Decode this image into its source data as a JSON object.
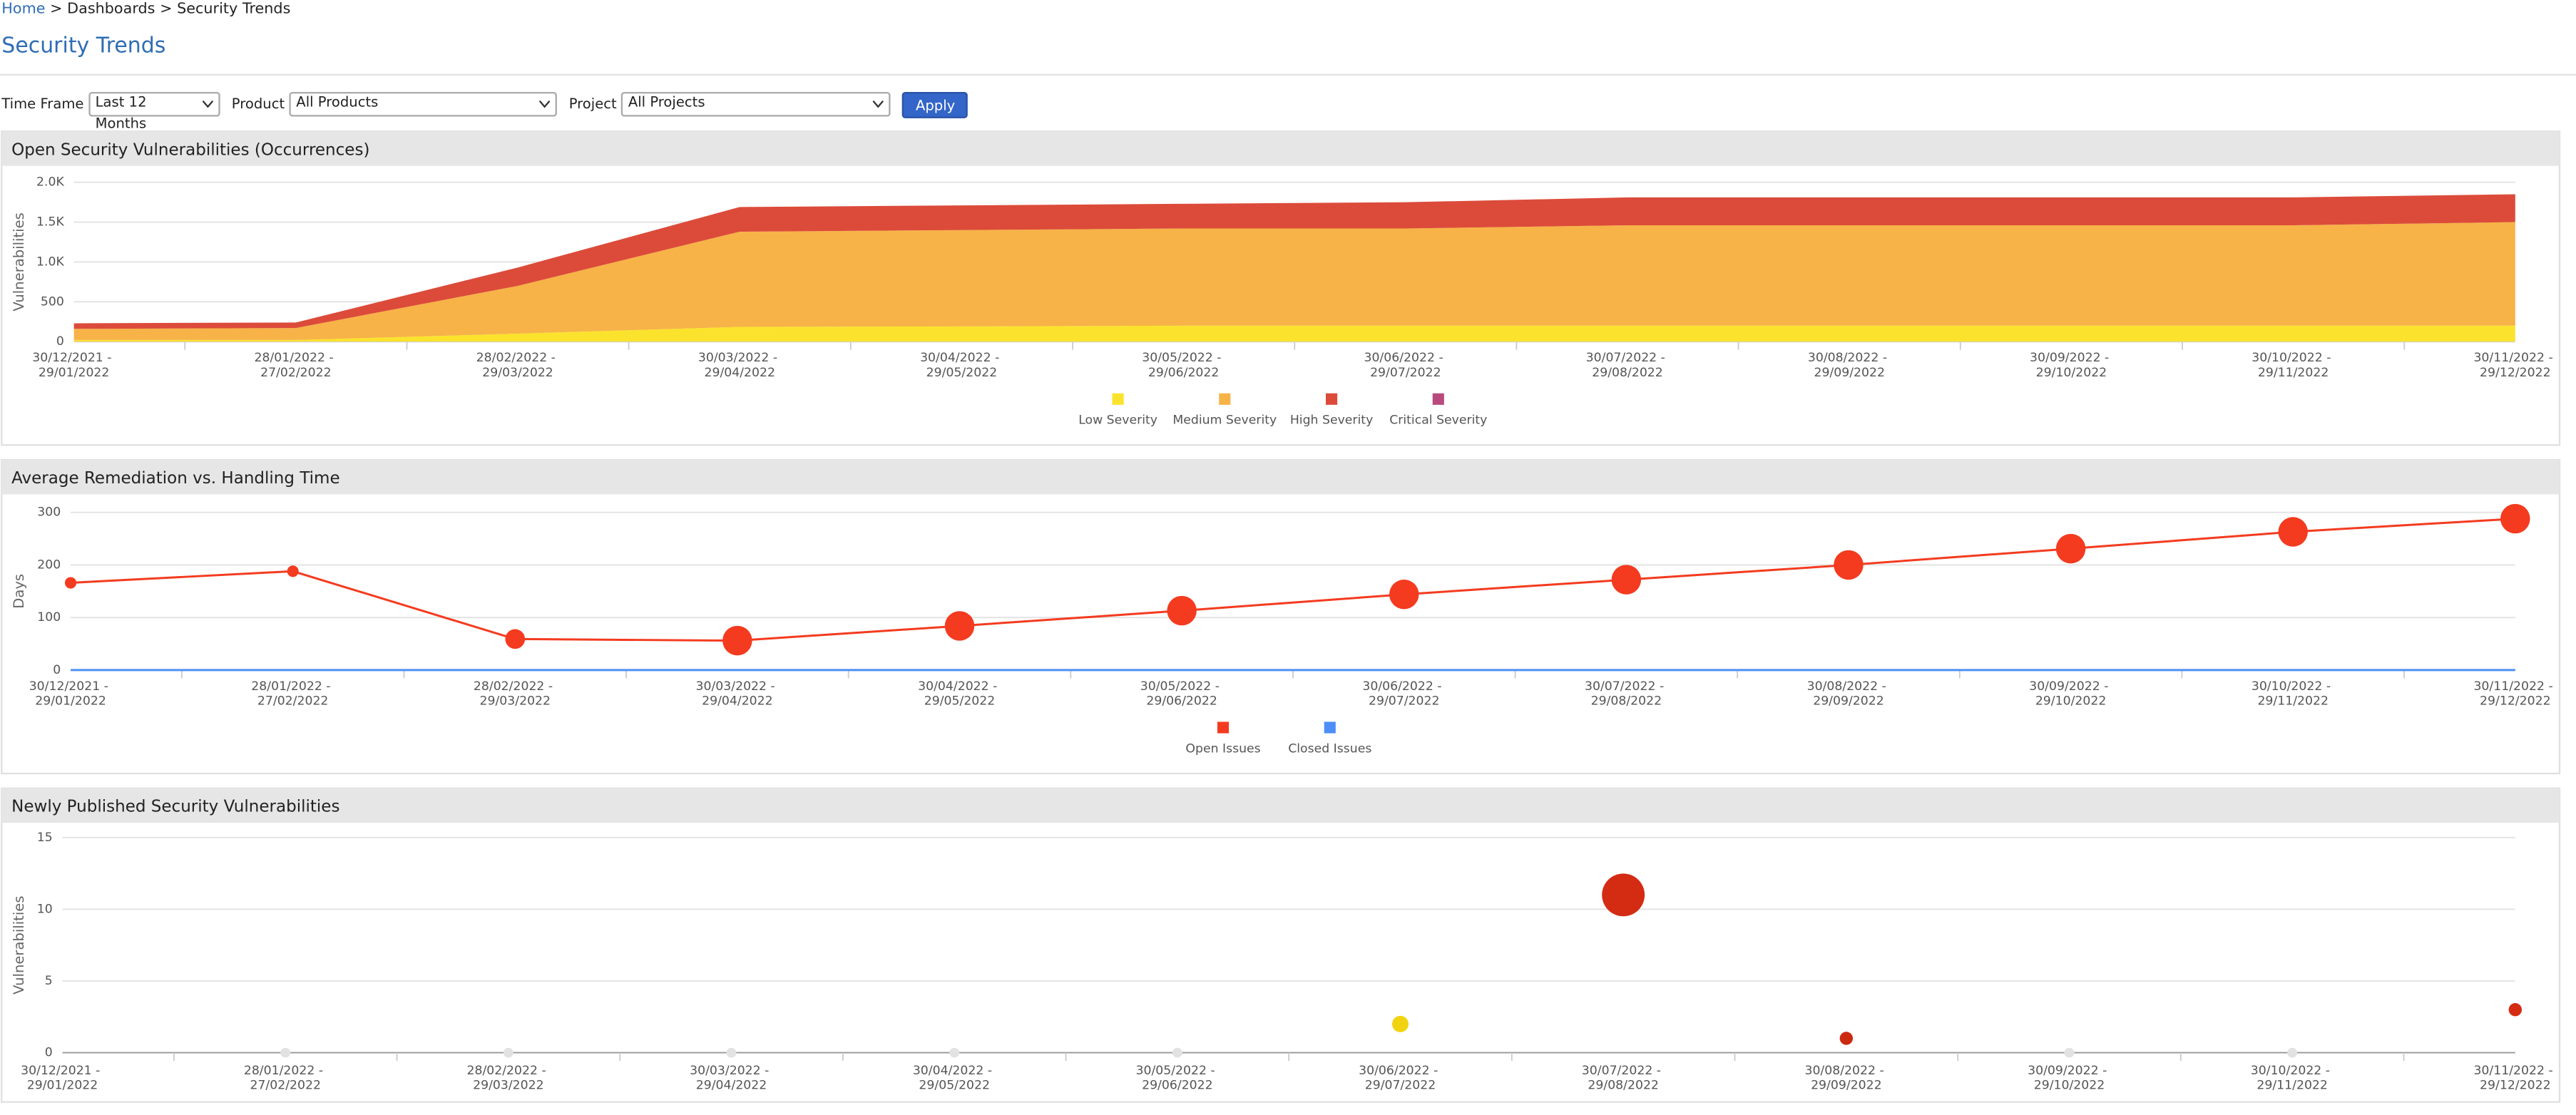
{
  "breadcrumb": {
    "items": [
      "Home",
      "Dashboards",
      "Security Trends"
    ],
    "separator": ">"
  },
  "header": {
    "title": "Security Trends"
  },
  "filters": {
    "time_frame": {
      "label": "Time Frame",
      "value": "Last 12 Months"
    },
    "product": {
      "label": "Product",
      "value": "All Products"
    },
    "project": {
      "label": "Project",
      "value": "All Projects"
    },
    "apply": "Apply"
  },
  "chart_data": [
    {
      "type": "area",
      "stacked": true,
      "title": "Open Security Vulnerabilities (Occurrences)",
      "y_label": "Vulnerabilities",
      "categories": [
        "30/12/2021 - 29/01/2022",
        "28/01/2022 - 27/02/2022",
        "28/02/2022 - 29/03/2022",
        "30/03/2022 - 29/04/2022",
        "30/04/2022 - 29/05/2022",
        "30/05/2022 - 29/06/2022",
        "30/06/2022 - 29/07/2022",
        "30/07/2022 - 29/08/2022",
        "30/08/2022 - 29/09/2022",
        "30/09/2022 - 29/10/2022",
        "30/10/2022 - 29/11/2022",
        "30/11/2022 - 29/12/2022"
      ],
      "series": [
        {
          "name": "Low Severity",
          "color": "#fbe32d",
          "values": [
            20,
            20,
            100,
            185,
            190,
            200,
            200,
            200,
            200,
            200,
            200,
            200
          ]
        },
        {
          "name": "Medium Severity",
          "color": "#f7b347",
          "values": [
            140,
            150,
            600,
            1195,
            1210,
            1220,
            1220,
            1260,
            1260,
            1260,
            1260,
            1300
          ]
        },
        {
          "name": "High Severity",
          "color": "#dc4b3a",
          "values": [
            70,
            70,
            230,
            310,
            310,
            310,
            330,
            350,
            350,
            350,
            350,
            350
          ]
        },
        {
          "name": "Critical Severity",
          "color": "#b84a7e",
          "values": [
            0,
            0,
            0,
            0,
            0,
            0,
            0,
            0,
            0,
            0,
            0,
            0
          ]
        }
      ],
      "ylim": [
        0,
        2000
      ],
      "yticks": [
        0,
        500,
        {
          "value": 1000,
          "label": "1.0K"
        },
        {
          "value": 1500,
          "label": "1.5K"
        },
        {
          "value": 2000,
          "label": "2.0K"
        }
      ],
      "grid": true,
      "legend": "bottom"
    },
    {
      "type": "line",
      "title": "Average Remediation vs. Handling Time",
      "y_label": "Days",
      "categories": [
        "30/12/2021 - 29/01/2022",
        "28/01/2022 - 27/02/2022",
        "28/02/2022 - 29/03/2022",
        "30/03/2022 - 29/04/2022",
        "30/04/2022 - 29/05/2022",
        "30/05/2022 - 29/06/2022",
        "30/06/2022 - 29/07/2022",
        "30/07/2022 - 29/08/2022",
        "30/08/2022 - 29/09/2022",
        "30/09/2022 - 29/10/2022",
        "30/10/2022 - 29/11/2022",
        "30/11/2022 - 29/12/2022"
      ],
      "series": [
        {
          "name": "Open Issues",
          "color": "#f43b1f",
          "values": [
            166,
            188,
            59,
            56,
            84,
            113,
            144,
            172,
            200,
            231,
            263,
            288
          ],
          "sizes": [
            3.5,
            3.5,
            6,
            9,
            9,
            9,
            9,
            9,
            9,
            9,
            9,
            9
          ]
        },
        {
          "name": "Closed Issues",
          "color": "#4d8ff7",
          "values": [
            0,
            0,
            0,
            0,
            0,
            0,
            0,
            0,
            0,
            0,
            0,
            0
          ]
        }
      ],
      "ylim": [
        0,
        300
      ],
      "yticks": [
        0,
        100,
        200,
        300
      ],
      "grid": true,
      "legend": "bottom"
    },
    {
      "type": "scatter",
      "title": "Newly Published Security Vulnerabilities",
      "y_label": "Vulnerabilities",
      "categories": [
        "30/12/2021 - 29/01/2022",
        "28/01/2022 - 27/02/2022",
        "28/02/2022 - 29/03/2022",
        "30/03/2022 - 29/04/2022",
        "30/04/2022 - 29/05/2022",
        "30/05/2022 - 29/06/2022",
        "30/06/2022 - 29/07/2022",
        "30/07/2022 - 29/08/2022",
        "30/08/2022 - 29/09/2022",
        "30/09/2022 - 29/10/2022",
        "30/10/2022 - 29/11/2022",
        "30/11/2022 - 29/12/2022"
      ],
      "values": [
        null,
        0,
        0,
        0,
        0,
        0,
        2,
        11,
        1,
        0,
        0,
        3
      ],
      "sizes": [
        null,
        3,
        3,
        3,
        3,
        3,
        5,
        13,
        4,
        3,
        3,
        4
      ],
      "colors": [
        null,
        "#e2e2e2",
        "#e2e2e2",
        "#e2e2e2",
        "#e2e2e2",
        "#e2e2e2",
        "#f2d30f",
        "#d42b13",
        "#cc2a10",
        "#e2e2e2",
        "#e2e2e2",
        "#d42b13"
      ],
      "ylim": [
        0,
        15
      ],
      "yticks": [
        0,
        5,
        10,
        15
      ],
      "grid": true
    }
  ]
}
